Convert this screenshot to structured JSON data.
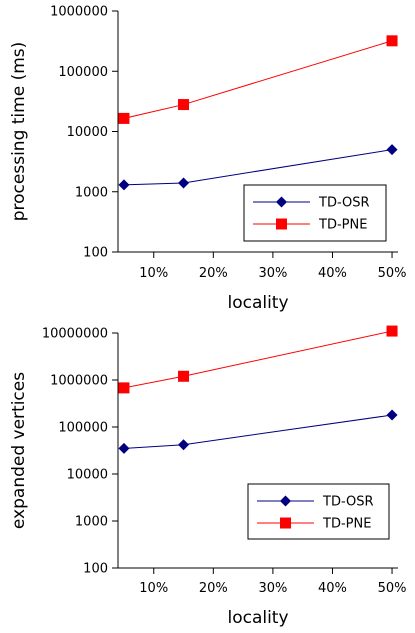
{
  "chart_data": [
    {
      "type": "line",
      "xlabel": "locality",
      "ylabel": "processing time (ms)",
      "yscale": "log",
      "x": [
        5,
        15,
        50
      ],
      "xlim": [
        4,
        51
      ],
      "xticks": [
        10,
        20,
        30,
        40,
        50
      ],
      "xtick_labels": [
        "10%",
        "20%",
        "30%",
        "40%",
        "50%"
      ],
      "ylim": [
        100,
        1000000
      ],
      "yticks": [
        100,
        1000,
        10000,
        100000,
        1000000
      ],
      "ytick_labels": [
        "100",
        "1000",
        "10000",
        "100000",
        "1000000"
      ],
      "series": [
        {
          "name": "TD-OSR",
          "values": [
            1300,
            1400,
            5000
          ],
          "color": "#000080",
          "marker": "diamond"
        },
        {
          "name": "TD-PNE",
          "values": [
            16500,
            28000,
            320000
          ],
          "color": "#ff0000",
          "marker": "square"
        }
      ],
      "legend": "bottom-right",
      "grid": false
    },
    {
      "type": "line",
      "xlabel": "locality",
      "ylabel": "expanded vertices",
      "yscale": "log",
      "x": [
        5,
        15,
        50
      ],
      "xlim": [
        4,
        51
      ],
      "xticks": [
        10,
        20,
        30,
        40,
        50
      ],
      "xtick_labels": [
        "10%",
        "20%",
        "30%",
        "40%",
        "50%"
      ],
      "ylim": [
        100,
        10000000
      ],
      "yticks": [
        100,
        1000,
        10000,
        100000,
        1000000,
        10000000
      ],
      "ytick_labels": [
        "100",
        "1000",
        "10000",
        "100000",
        "1000000",
        "10000000"
      ],
      "series": [
        {
          "name": "TD-OSR",
          "values": [
            35000,
            42000,
            180000
          ],
          "color": "#000080",
          "marker": "diamond"
        },
        {
          "name": "TD-PNE",
          "values": [
            680000,
            1200000,
            11000000
          ],
          "color": "#ff0000",
          "marker": "square"
        }
      ],
      "legend": "bottom-right",
      "grid": false
    }
  ]
}
